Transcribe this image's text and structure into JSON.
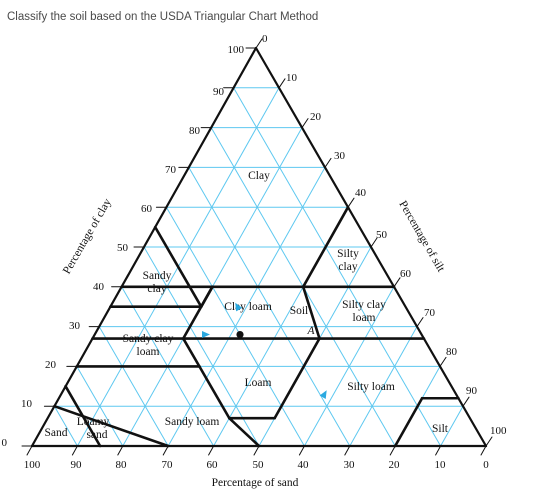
{
  "question": "Classify the soil based on the USDA Triangular Chart Method",
  "axes": {
    "clay_title": "Percentage of clay",
    "silt_title": "Percentage of silt",
    "sand_title": "Percentage of sand",
    "clay_ticks": [
      "0",
      "10",
      "20",
      "30",
      "40",
      "50",
      "60",
      "70",
      "80",
      "90",
      "100"
    ],
    "silt_ticks": [
      "0",
      "10",
      "20",
      "30",
      "40",
      "50",
      "60",
      "70",
      "80",
      "90",
      "100"
    ],
    "sand_ticks": [
      "100",
      "90",
      "80",
      "70",
      "60",
      "50",
      "40",
      "30",
      "20",
      "10",
      "0"
    ]
  },
  "classes": {
    "clay": "Clay",
    "silty_clay_1": "Silty",
    "silty_clay_2": "clay",
    "sandy_clay_1": "Sandy",
    "sandy_clay_2": "clay",
    "clay_loam": "Clay loam",
    "silty_clay_loam_1": "Silty clay",
    "silty_clay_loam_2": "loam",
    "sandy_clay_loam_1": "Sandy clay",
    "sandy_clay_loam_2": "loam",
    "loam": "Loam",
    "silty_loam": "Silty loam",
    "sandy_loam": "Sandy loam",
    "loamy_sand_1": "Loamy",
    "loamy_sand_2": "sand",
    "sand": "Sand",
    "silt": "Silt"
  },
  "soil_point": {
    "label": "Soil",
    "sublabel": "A",
    "sand": 40,
    "silt": 32,
    "clay": 28
  },
  "colors": {
    "grid": "#5ec8f0",
    "boundary": "#111111",
    "arrow": "#2aa9e0",
    "text": "#111111"
  }
}
